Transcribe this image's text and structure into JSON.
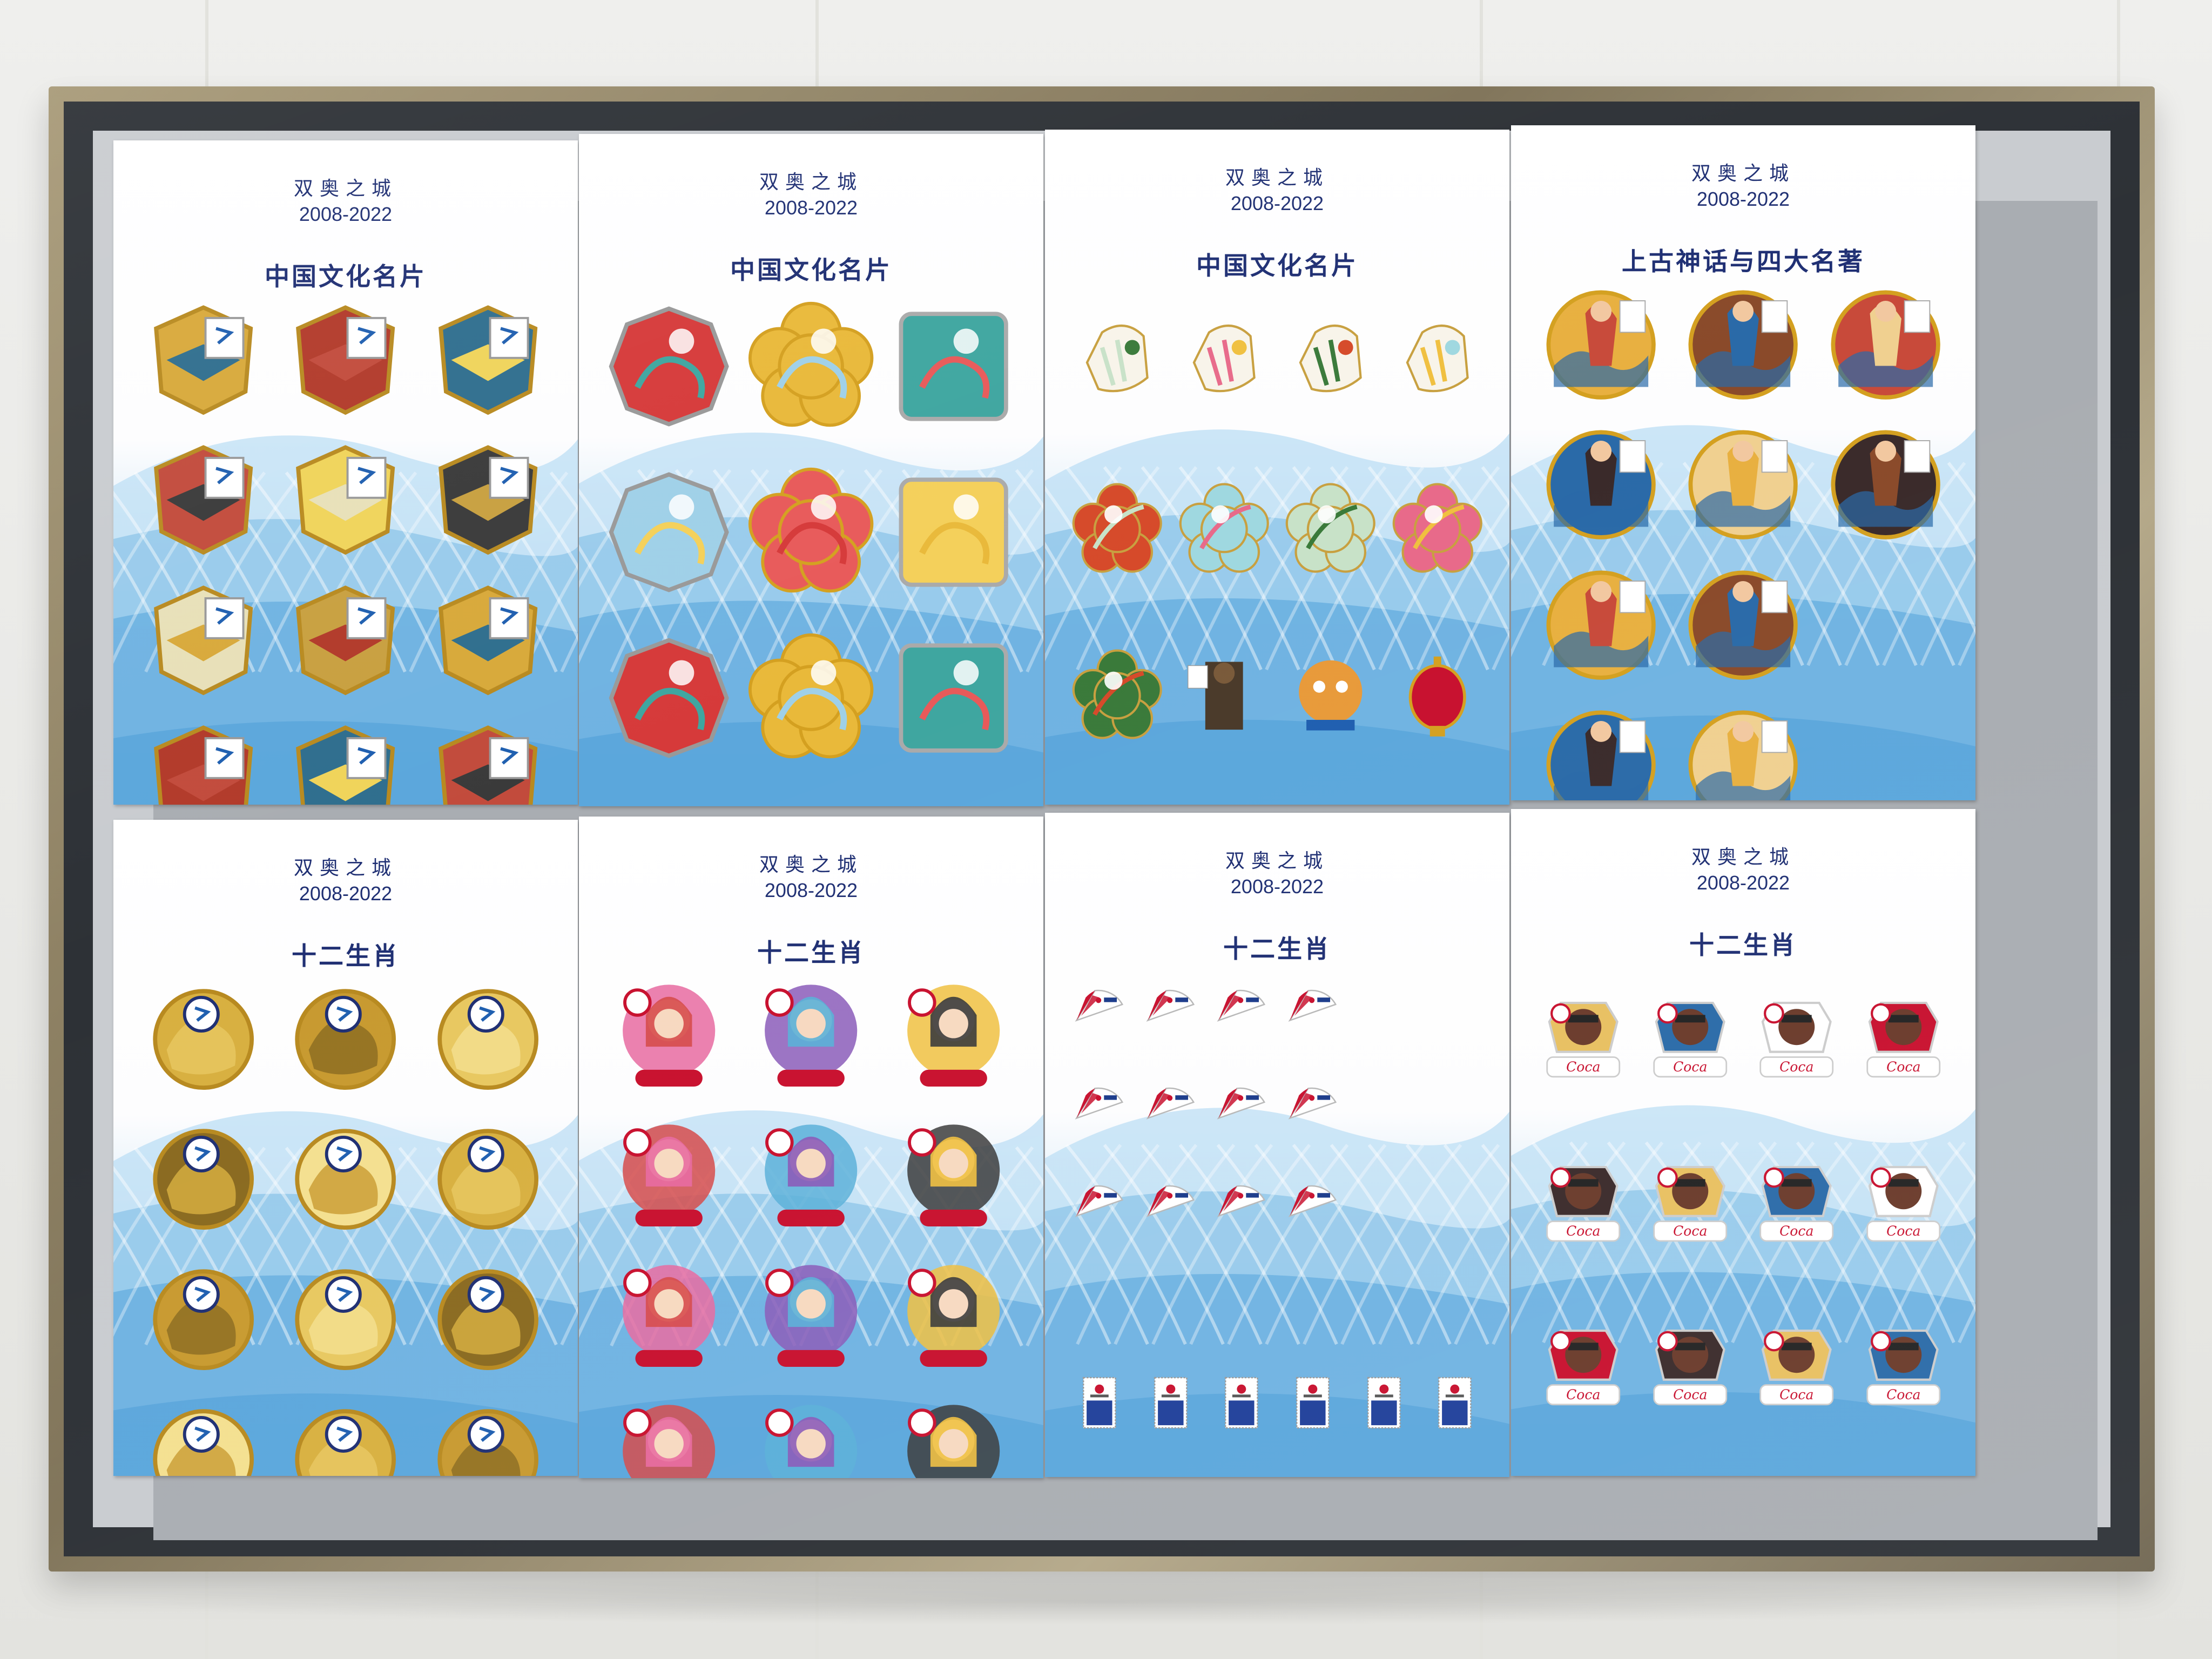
{
  "colors": {
    "title": "#1f2f73",
    "frame": "#8c7f62",
    "panel_blue": "#6fb4e2"
  },
  "panels": [
    {
      "line1": "双奥之城",
      "line2": "2008-2022",
      "title": "中国文化名片"
    },
    {
      "line1": "双奥之城",
      "line2": "2008-2022",
      "title": "中国文化名片"
    },
    {
      "line1": "双奥之城",
      "line2": "2008-2022",
      "title": "中国文化名片"
    },
    {
      "line1": "双奥之城",
      "line2": "2008-2022",
      "title": "上古神话与四大名著"
    },
    {
      "line1": "双奥之城",
      "line2": "2008-2022",
      "title": "十二生肖"
    },
    {
      "line1": "双奥之城",
      "line2": "2008-2022",
      "title": "十二生肖"
    },
    {
      "line1": "双奥之城",
      "line2": "2008-2022",
      "title": "十二生肖"
    },
    {
      "line1": "双奥之城",
      "line2": "2008-2022",
      "title": "十二生肖"
    }
  ]
}
